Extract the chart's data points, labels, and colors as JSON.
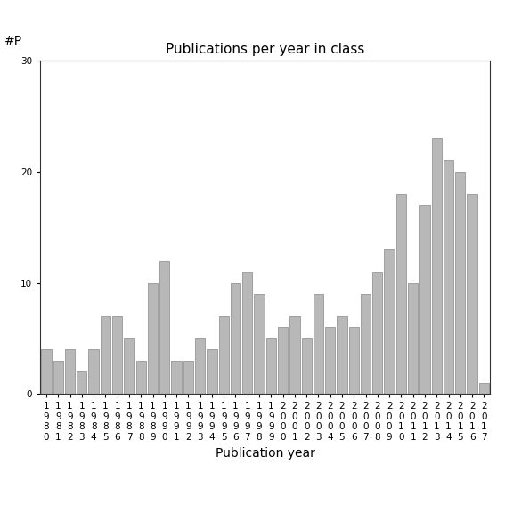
{
  "title": "Publications per year in class",
  "xlabel": "Publication year",
  "ylabel": "#P",
  "years": [
    1980,
    1981,
    1982,
    1983,
    1984,
    1985,
    1986,
    1987,
    1988,
    1989,
    1990,
    1991,
    1992,
    1993,
    1994,
    1995,
    1996,
    1997,
    1998,
    1999,
    2000,
    2001,
    2002,
    2003,
    2004,
    2005,
    2006,
    2007,
    2008,
    2009,
    2010,
    2011,
    2012,
    2013,
    2014,
    2015,
    2016,
    2017
  ],
  "values": [
    4,
    3,
    4,
    2,
    4,
    7,
    7,
    5,
    3,
    10,
    12,
    3,
    3,
    5,
    4,
    7,
    10,
    11,
    9,
    5,
    6,
    7,
    5,
    9,
    6,
    7,
    6,
    9,
    11,
    13,
    18,
    10,
    17,
    23,
    21,
    20,
    18,
    1
  ],
  "bar_color": "#b8b8b8",
  "bar_edgecolor": "#888888",
  "ylim": [
    0,
    30
  ],
  "yticks": [
    0,
    10,
    20,
    30
  ],
  "background_color": "#ffffff",
  "title_fontsize": 11,
  "axis_label_fontsize": 10,
  "tick_label_fontsize": 7.5
}
